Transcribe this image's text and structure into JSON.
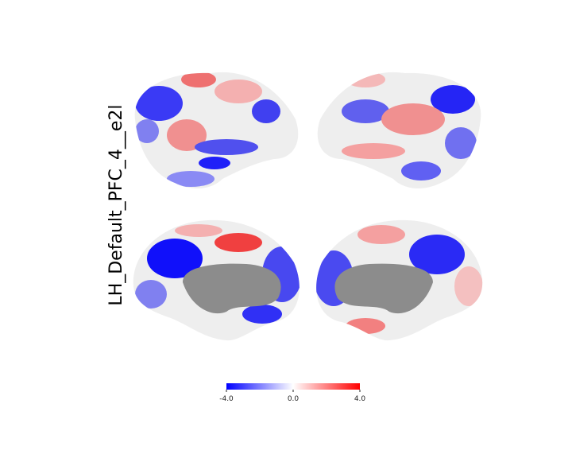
{
  "title": "LH_Default_PFC_4__e2l",
  "colorbar": {
    "range": [
      -4,
      4
    ],
    "ticks": [
      {
        "value": -4,
        "label": "-4.0"
      },
      {
        "value": 0,
        "label": "0.0"
      },
      {
        "value": 4,
        "label": "4.0"
      }
    ],
    "colors": [
      "#0000ff",
      "#ffffff",
      "#ff0000"
    ]
  }
}
